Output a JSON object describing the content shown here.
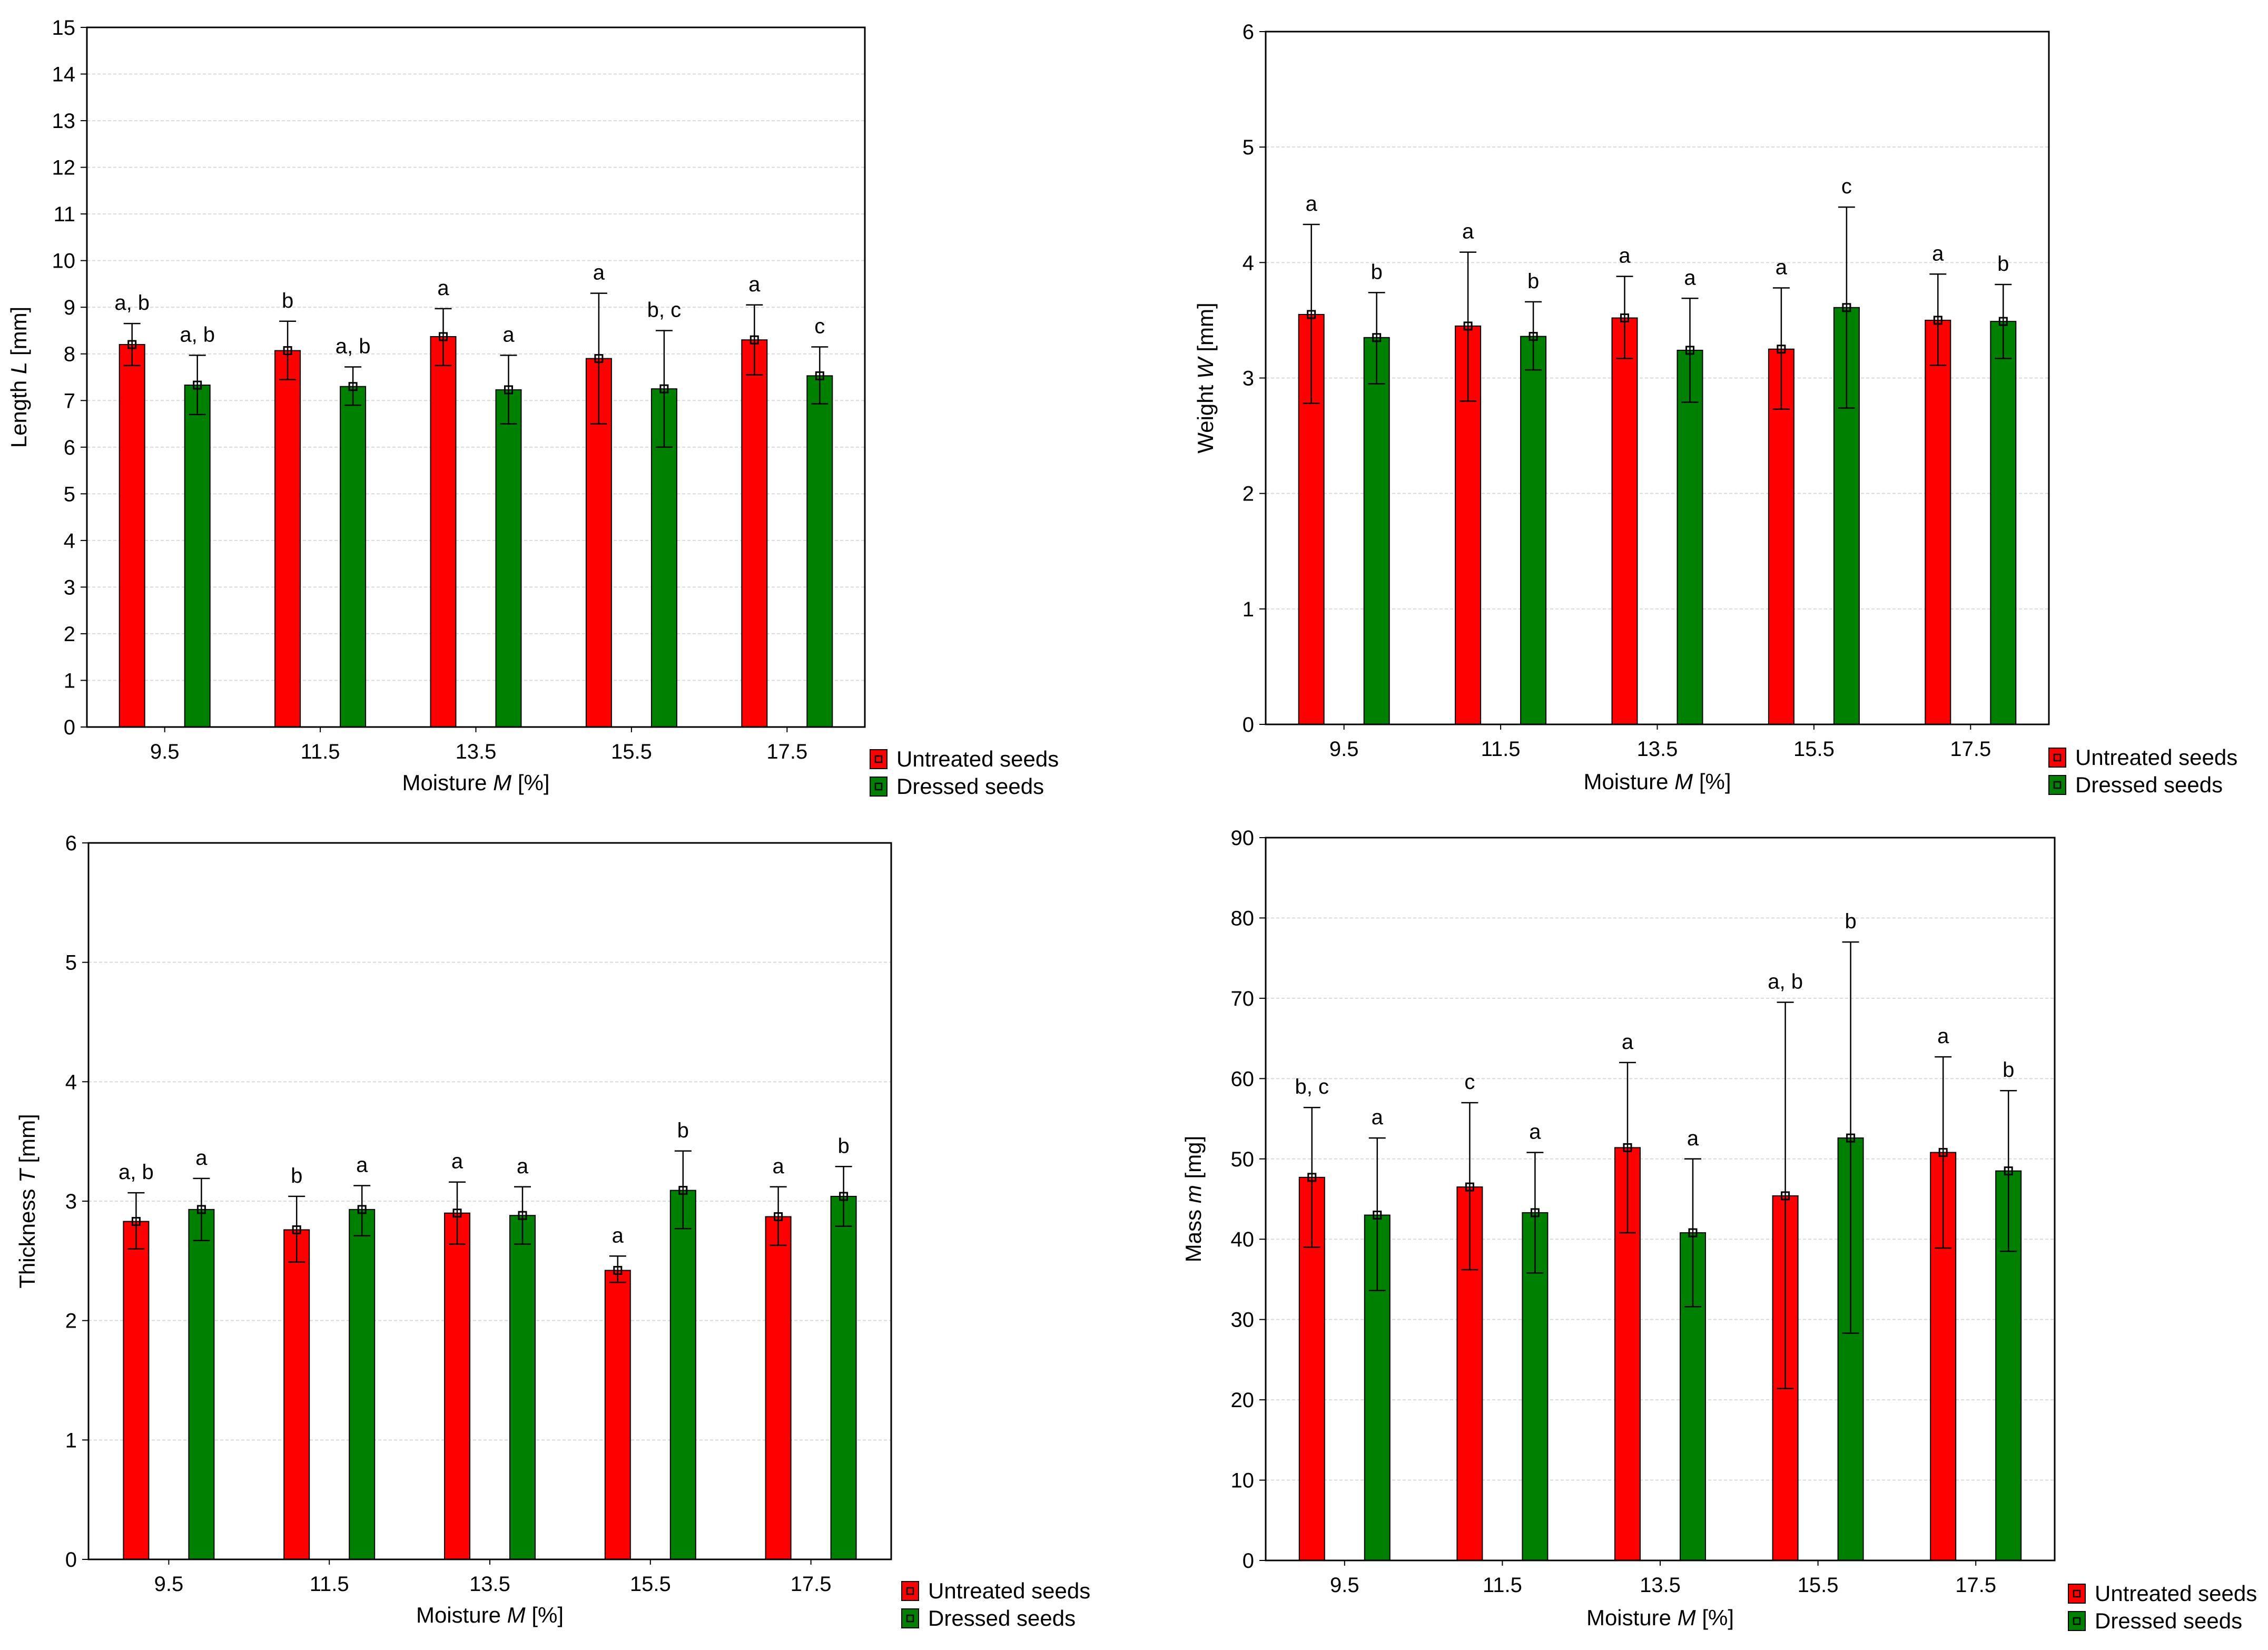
{
  "colors": {
    "untreated": "#ff0000",
    "dressed": "#008000",
    "grid": "#d9d9d9",
    "frame": "#000000"
  },
  "legend": {
    "untreated": "Untreated seeds",
    "dressed": "Dressed seeds"
  },
  "chart_data": [
    {
      "type": "bar",
      "name": "length",
      "categories": [
        "9.5",
        "11.5",
        "13.5",
        "15.5",
        "17.5"
      ],
      "xlabel_prefix": "Moisture ",
      "xlabel_var": "M",
      "xlabel_suffix": " [%]",
      "ylabel_prefix": "Length ",
      "ylabel_var": "L",
      "ylabel_suffix": " [mm]",
      "ylim": [
        0,
        15
      ],
      "yticks": [
        0,
        1,
        2,
        3,
        4,
        5,
        6,
        7,
        8,
        9,
        10,
        11,
        12,
        13,
        14,
        15
      ],
      "series": [
        {
          "name": "Untreated seeds",
          "values": [
            8.2,
            8.07,
            8.37,
            7.9,
            8.3
          ],
          "lower": [
            7.75,
            7.45,
            7.75,
            6.5,
            7.55
          ],
          "upper": [
            8.65,
            8.7,
            8.97,
            9.3,
            9.05
          ],
          "letters": [
            "a, b",
            "b",
            "a",
            "a",
            "a"
          ]
        },
        {
          "name": "Dressed seeds",
          "values": [
            7.33,
            7.3,
            7.23,
            7.25,
            7.53
          ],
          "lower": [
            6.7,
            6.9,
            6.5,
            6.0,
            6.93
          ],
          "upper": [
            7.97,
            7.72,
            7.97,
            8.5,
            8.15
          ],
          "letters": [
            "a, b",
            "a, b",
            "a",
            "b, c",
            "c"
          ]
        }
      ]
    },
    {
      "type": "bar",
      "name": "weight",
      "categories": [
        "9.5",
        "11.5",
        "13.5",
        "15.5",
        "17.5"
      ],
      "xlabel_prefix": "Moisture ",
      "xlabel_var": "M",
      "xlabel_suffix": " [%]",
      "ylabel_prefix": "Weight ",
      "ylabel_var": "W",
      "ylabel_suffix": " [mm]",
      "ylim": [
        0,
        6
      ],
      "yticks": [
        0,
        1,
        2,
        3,
        4,
        5,
        6
      ],
      "series": [
        {
          "name": "Untreated seeds",
          "values": [
            3.55,
            3.45,
            3.52,
            3.25,
            3.5
          ],
          "lower": [
            2.78,
            2.8,
            3.17,
            2.73,
            3.11
          ],
          "upper": [
            4.33,
            4.09,
            3.88,
            3.78,
            3.9
          ],
          "letters": [
            "a",
            "a",
            "a",
            "a",
            "a"
          ]
        },
        {
          "name": "Dressed seeds",
          "values": [
            3.35,
            3.36,
            3.24,
            3.61,
            3.49
          ],
          "lower": [
            2.95,
            3.07,
            2.79,
            2.74,
            3.17
          ],
          "upper": [
            3.74,
            3.66,
            3.69,
            4.48,
            3.81
          ],
          "letters": [
            "b",
            "b",
            "a",
            "c",
            "b"
          ]
        }
      ]
    },
    {
      "type": "bar",
      "name": "thickness",
      "categories": [
        "9.5",
        "11.5",
        "13.5",
        "15.5",
        "17.5"
      ],
      "xlabel_prefix": "Moisture ",
      "xlabel_var": "M",
      "xlabel_suffix": " [%]",
      "ylabel_prefix": "Thickness ",
      "ylabel_var": "T",
      "ylabel_suffix": " [mm]",
      "ylim": [
        0,
        6
      ],
      "yticks": [
        0,
        1,
        2,
        3,
        4,
        5,
        6
      ],
      "series": [
        {
          "name": "Untreated seeds",
          "values": [
            2.83,
            2.76,
            2.9,
            2.42,
            2.87
          ],
          "lower": [
            2.6,
            2.49,
            2.64,
            2.32,
            2.63
          ],
          "upper": [
            3.07,
            3.04,
            3.16,
            2.54,
            3.12
          ],
          "letters": [
            "a, b",
            "b",
            "a",
            "a",
            "a"
          ]
        },
        {
          "name": "Dressed seeds",
          "values": [
            2.93,
            2.93,
            2.88,
            3.09,
            3.04
          ],
          "lower": [
            2.67,
            2.71,
            2.64,
            2.77,
            2.79
          ],
          "upper": [
            3.19,
            3.13,
            3.12,
            3.42,
            3.29
          ],
          "letters": [
            "a",
            "a",
            "a",
            "b",
            "b"
          ]
        }
      ]
    },
    {
      "type": "bar",
      "name": "mass",
      "categories": [
        "9.5",
        "11.5",
        "13.5",
        "15.5",
        "17.5"
      ],
      "xlabel_prefix": "Moisture ",
      "xlabel_var": "M",
      "xlabel_suffix": " [%]",
      "ylabel_prefix": "Mass ",
      "ylabel_var": "m",
      "ylabel_suffix": " [mg]",
      "ylim": [
        0,
        90
      ],
      "yticks": [
        0,
        10,
        20,
        30,
        40,
        50,
        60,
        70,
        80,
        90
      ],
      "series": [
        {
          "name": "Untreated seeds",
          "values": [
            47.7,
            46.5,
            51.4,
            45.4,
            50.8
          ],
          "lower": [
            39.0,
            36.2,
            40.8,
            21.4,
            38.9
          ],
          "upper": [
            56.4,
            57.0,
            62.0,
            69.5,
            62.7
          ],
          "letters": [
            "b, c",
            "c",
            "a",
            "a, b",
            "a"
          ]
        },
        {
          "name": "Dressed seeds",
          "values": [
            43.0,
            43.3,
            40.8,
            52.6,
            48.5
          ],
          "lower": [
            33.6,
            35.8,
            31.6,
            28.3,
            38.5
          ],
          "upper": [
            52.6,
            50.8,
            50.0,
            77.0,
            58.5
          ],
          "letters": [
            "a",
            "a",
            "a",
            "b",
            "b"
          ]
        }
      ]
    }
  ]
}
